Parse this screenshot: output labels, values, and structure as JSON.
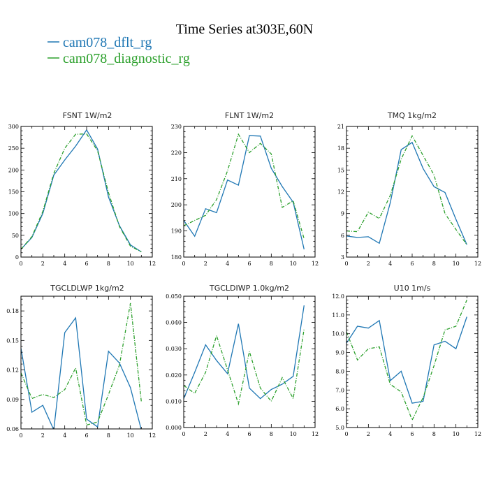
{
  "figure": {
    "title": "Time Series at303E,60N",
    "legend": [
      {
        "name": "cam078_dflt_rg",
        "color": "#1f77b4"
      },
      {
        "name": "cam078_diagnostic_rg",
        "color": "#2ca02c"
      }
    ]
  },
  "chart_data": [
    {
      "type": "line",
      "title": "FSNT   1W/m2",
      "x": [
        0,
        1,
        2,
        3,
        4,
        5,
        6,
        7,
        8,
        9,
        10,
        11
      ],
      "xlim": [
        0,
        12
      ],
      "xticks": [
        0,
        2,
        4,
        6,
        8,
        10,
        12
      ],
      "ylim": [
        0,
        300
      ],
      "yticks": [
        0,
        50,
        100,
        150,
        200,
        250,
        300
      ],
      "yticklabels": [
        "0",
        "50",
        "100",
        "150",
        "200",
        "250",
        "300"
      ],
      "series": [
        {
          "name": "cam078_dflt_rg",
          "values": [
            18,
            45,
            100,
            188,
            223,
            255,
            292,
            248,
            138,
            72,
            28,
            12
          ]
        },
        {
          "name": "cam078_diagnostic_rg",
          "values": [
            18,
            47,
            105,
            192,
            250,
            282,
            283,
            244,
            148,
            70,
            25,
            12
          ]
        }
      ]
    },
    {
      "type": "line",
      "title": "FLNT   1W/m2",
      "x": [
        0,
        1,
        2,
        3,
        4,
        5,
        6,
        7,
        8,
        9,
        10,
        11
      ],
      "xlim": [
        0,
        12
      ],
      "xticks": [
        0,
        2,
        4,
        6,
        8,
        10,
        12
      ],
      "ylim": [
        180,
        230
      ],
      "yticks": [
        180,
        190,
        200,
        210,
        220,
        230
      ],
      "yticklabels": [
        "180",
        "190",
        "200",
        "210",
        "220",
        "230"
      ],
      "series": [
        {
          "name": "cam078_dflt_rg",
          "values": [
            194,
            188,
            198.5,
            197,
            209.5,
            207.5,
            226.5,
            226.3,
            214,
            207,
            201,
            183
          ]
        },
        {
          "name": "cam078_diagnostic_rg",
          "values": [
            192,
            194,
            196,
            202,
            213,
            227,
            220,
            223.5,
            219.5,
            199,
            201.5,
            187
          ]
        }
      ]
    },
    {
      "type": "line",
      "title": "TMQ   1kg/m2",
      "x": [
        0,
        1,
        2,
        3,
        4,
        5,
        6,
        7,
        8,
        9,
        10,
        11
      ],
      "xlim": [
        0,
        12
      ],
      "xticks": [
        0,
        2,
        4,
        6,
        8,
        10,
        12
      ],
      "ylim": [
        3,
        21
      ],
      "yticks": [
        3,
        6,
        9,
        12,
        15,
        18,
        21
      ],
      "yticklabels": [
        "3",
        "6",
        "9",
        "12",
        "15",
        "18",
        "21"
      ],
      "series": [
        {
          "name": "cam078_dflt_rg",
          "values": [
            5.9,
            5.7,
            5.8,
            4.9,
            10.5,
            17.8,
            18.8,
            15.2,
            12.7,
            11.9,
            8.2,
            4.7
          ]
        },
        {
          "name": "cam078_diagnostic_rg",
          "values": [
            6.6,
            6.5,
            9.2,
            8.3,
            11.5,
            16.5,
            19.7,
            17,
            14.3,
            9,
            6.8,
            4.7
          ]
        }
      ]
    },
    {
      "type": "line",
      "title": "TGCLDLWP   1kg/m2",
      "x": [
        0,
        1,
        2,
        3,
        4,
        5,
        6,
        7,
        8,
        9,
        10,
        11
      ],
      "xlim": [
        0,
        12
      ],
      "xticks": [
        0,
        2,
        4,
        6,
        8,
        10,
        12
      ],
      "ylim": [
        0.06,
        0.195
      ],
      "yticks": [
        0.06,
        0.09,
        0.12,
        0.15,
        0.18
      ],
      "yticklabels": [
        "0.06",
        "0.09",
        "0.12",
        "0.15",
        "0.18"
      ],
      "series": [
        {
          "name": "cam078_dflt_rg",
          "values": [
            0.142,
            0.077,
            0.084,
            0.059,
            0.158,
            0.173,
            0.07,
            0.062,
            0.139,
            0.127,
            0.102,
            0.059
          ]
        },
        {
          "name": "cam078_diagnostic_rg",
          "values": [
            0.117,
            0.091,
            0.095,
            0.092,
            0.1,
            0.122,
            0.064,
            0.067,
            0.095,
            0.125,
            0.188,
            0.088
          ]
        }
      ]
    },
    {
      "type": "line",
      "title": "TGCLDIWP   1.0kg/m2",
      "x": [
        0,
        1,
        2,
        3,
        4,
        5,
        6,
        7,
        8,
        9,
        10,
        11
      ],
      "xlim": [
        0,
        12
      ],
      "xticks": [
        0,
        2,
        4,
        6,
        8,
        10,
        12
      ],
      "ylim": [
        0,
        0.05
      ],
      "yticks": [
        0,
        0.01,
        0.02,
        0.03,
        0.04,
        0.05
      ],
      "yticklabels": [
        "0.000",
        "0.010",
        "0.020",
        "0.030",
        "0.040",
        "0.050"
      ],
      "series": [
        {
          "name": "cam078_dflt_rg",
          "values": [
            0.011,
            0.021,
            0.0315,
            0.0255,
            0.0205,
            0.0395,
            0.015,
            0.011,
            0.0145,
            0.0165,
            0.0195,
            0.0465
          ]
        },
        {
          "name": "cam078_diagnostic_rg",
          "values": [
            0.016,
            0.013,
            0.021,
            0.035,
            0.022,
            0.009,
            0.029,
            0.015,
            0.01,
            0.019,
            0.011,
            0.0375
          ]
        }
      ]
    },
    {
      "type": "line",
      "title": "U10   1m/s",
      "x": [
        0,
        1,
        2,
        3,
        4,
        5,
        6,
        7,
        8,
        9,
        10,
        11
      ],
      "xlim": [
        0,
        12
      ],
      "xticks": [
        0,
        2,
        4,
        6,
        8,
        10,
        12
      ],
      "ylim": [
        5,
        12
      ],
      "yticks": [
        5,
        6,
        7,
        8,
        9,
        10,
        11,
        12
      ],
      "yticklabels": [
        "5.0",
        "6.0",
        "7.0",
        "8.0",
        "9.0",
        "10.0",
        "11.0",
        "12.0"
      ],
      "series": [
        {
          "name": "cam078_dflt_rg",
          "values": [
            9.5,
            10.4,
            10.3,
            10.7,
            7.5,
            8.0,
            6.3,
            6.4,
            9.4,
            9.6,
            9.2,
            10.9
          ]
        },
        {
          "name": "cam078_diagnostic_rg",
          "values": [
            10.1,
            8.6,
            9.2,
            9.3,
            7.3,
            6.9,
            5.4,
            6.6,
            8.3,
            10.2,
            10.4,
            11.8
          ]
        }
      ]
    }
  ]
}
